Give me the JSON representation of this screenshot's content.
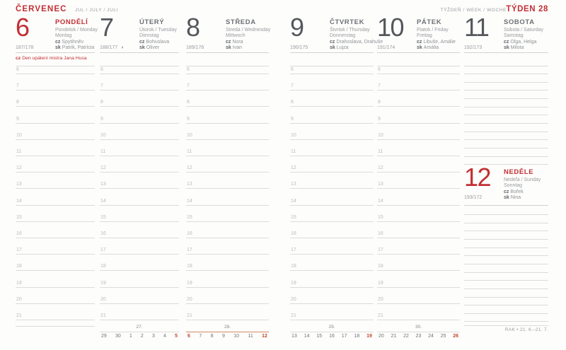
{
  "accent": {
    "red": "#c22f33",
    "strip_red": "#bd4a31",
    "current_week_rule": "#cf8a60"
  },
  "header": {
    "month": "ČERVENEC",
    "month_sub": "JUL / JULY / JULI",
    "week_sub": "TÝŽDEŇ / WEEK / WOCHE",
    "week_label": "TÝDEN 28"
  },
  "hours": [
    "6",
    "7",
    "8",
    "9",
    "10",
    "11",
    "12",
    "13",
    "14",
    "15",
    "16",
    "17",
    "18",
    "19",
    "20",
    "21"
  ],
  "days": [
    {
      "num": "6",
      "accent": true,
      "name": "PONDĚLÍ",
      "sub1": "Pondelok / Monday",
      "sub2": "Montag",
      "cz": "Spytihněv",
      "sk": "Patrik, Patrícia",
      "doy": "187/178",
      "holiday": "Den upálení mistra Jana Husa"
    },
    {
      "num": "7",
      "accent": false,
      "name": "ÚTERÝ",
      "sub1": "Útorok / Tuesday",
      "sub2": "Dienstag",
      "cz": "Bohuslava",
      "sk": "Oliver",
      "doy": "188/177",
      "moon": "◑"
    },
    {
      "num": "8",
      "accent": false,
      "name": "STŘEDA",
      "sub1": "Streda / Wednesday",
      "sub2": "Mittwoch",
      "cz": "Nora",
      "sk": "Ivan",
      "doy": "189/176"
    },
    {
      "num": "9",
      "accent": false,
      "name": "ČTVRTEK",
      "sub1": "Štvrtok / Thursday",
      "sub2": "Donnerstag",
      "cz": "Drahoslava, Drahuše",
      "sk": "Lujza",
      "doy": "190/175"
    },
    {
      "num": "10",
      "accent": false,
      "name": "PÁTEK",
      "sub1": "Piatok / Friday",
      "sub2": "Freitag",
      "cz": "Libuše, Amálie",
      "sk": "Amália",
      "doy": "191/174"
    },
    {
      "num": "11",
      "accent": false,
      "name": "SOBOTA",
      "sub1": "Sobota / Saturday",
      "sub2": "Samstag",
      "cz": "Olga, Helga",
      "sk": "Milota",
      "doy": "192/173"
    },
    {
      "num": "12",
      "accent": true,
      "name": "NEDĚLE",
      "sub1": "Nedeľa / Sunday",
      "sub2": "Sonntag",
      "cz": "Bořek",
      "sk": "Nina",
      "doy": "193/172"
    }
  ],
  "footers": [
    {
      "type": "empty"
    },
    {
      "type": "strip",
      "week": "27.",
      "days": [
        "29",
        "30",
        "1",
        "2",
        "3",
        "4",
        "5"
      ],
      "red": [
        6
      ],
      "current": false
    },
    {
      "type": "strip",
      "week": "28.",
      "days": [
        "6",
        "7",
        "8",
        "9",
        "10",
        "11",
        "12"
      ],
      "red": [
        0,
        6
      ],
      "current": true
    },
    {
      "type": "strip",
      "week": "29.",
      "days": [
        "13",
        "14",
        "15",
        "16",
        "17",
        "18",
        "19"
      ],
      "red": [
        6
      ],
      "current": false
    },
    {
      "type": "strip",
      "week": "30.",
      "days": [
        "20",
        "21",
        "22",
        "23",
        "24",
        "25",
        "26"
      ],
      "red": [
        6
      ],
      "current": false
    },
    {
      "type": "zodiac",
      "text": "RAK • 21. 6.–21. 7."
    }
  ]
}
